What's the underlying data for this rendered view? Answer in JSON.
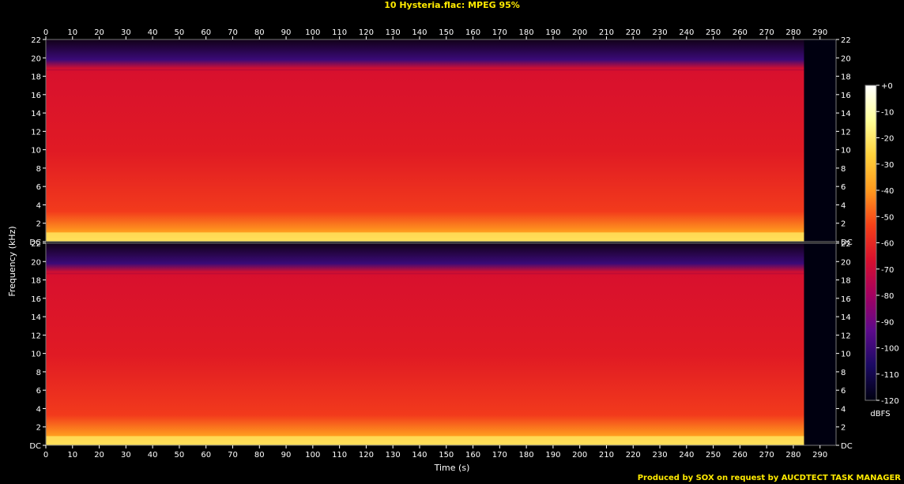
{
  "title": "10 Hysteria.flac: MPEG 95%",
  "footer": "Produced by SOX on request by AUCDTECT TASK MANAGER",
  "chart_data": {
    "type": "heatmap",
    "title": "10 Hysteria.flac: MPEG 95%",
    "xlabel": "Time (s)",
    "ylabel": "Frequency (kHz)",
    "xlim": [
      0,
      296
    ],
    "ylim": [
      0,
      22
    ],
    "x_ticks": [
      0,
      10,
      20,
      30,
      40,
      50,
      60,
      70,
      80,
      90,
      100,
      110,
      120,
      130,
      140,
      150,
      160,
      170,
      180,
      190,
      200,
      210,
      220,
      230,
      240,
      250,
      260,
      270,
      280,
      290
    ],
    "y_tick_labels": [
      "DC",
      "2",
      "4",
      "6",
      "8",
      "10",
      "12",
      "14",
      "16",
      "18",
      "20",
      "22"
    ],
    "channels": 2,
    "lowpass_cutoff_khz": 18.7,
    "audio_end_s": 284,
    "colorbar": {
      "label": "dBFS",
      "ticks": [
        "+0",
        "-10",
        "-20",
        "-30",
        "-40",
        "-50",
        "-60",
        "-70",
        "-80",
        "-90",
        "-100",
        "-110",
        "-120"
      ],
      "stops": [
        "#ffffff",
        "#ffff99",
        "#ffd23c",
        "#ff9a1e",
        "#f54018",
        "#d8102e",
        "#a40061",
        "#5d0a8c",
        "#1b0a63",
        "#000010"
      ]
    }
  }
}
